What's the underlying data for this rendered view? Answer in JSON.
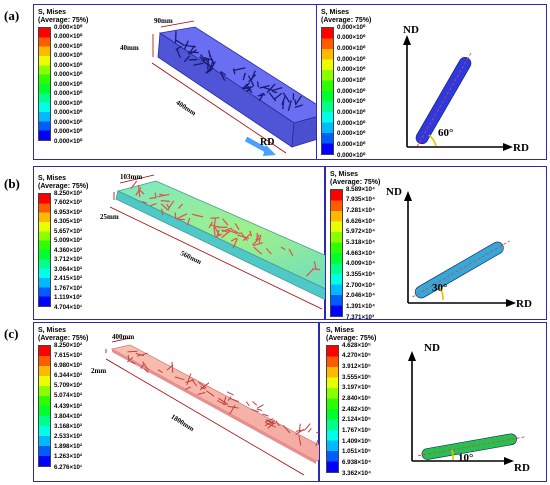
{
  "colors": {
    "frame": "#2b2bb0",
    "cells": [
      "#0000ff",
      "#005cff",
      "#00b9ff",
      "#00ffe8",
      "#00ff8b",
      "#00ff2e",
      "#2eff00",
      "#8bff00",
      "#e8ff00",
      "#ffb900",
      "#ff5c00",
      "#ff0000"
    ]
  },
  "rows": [
    {
      "label": "(a)",
      "left_legend": {
        "title1": "S, Mises",
        "title2": "(Average: 75%)",
        "values": [
          "0.000×10⁰",
          "0.000×10⁰",
          "0.000×10⁰",
          "0.000×10⁰",
          "0.000×10⁰",
          "0.000×10⁰",
          "0.000×10⁰",
          "0.000×10⁰",
          "0.000×10⁰",
          "0.000×10⁰",
          "0.000×10⁰",
          "0.000×10⁰",
          "0.000×10⁰"
        ]
      },
      "dims": [
        "90mm",
        "40mm",
        "400mm"
      ],
      "rd_arrow_label": "RD",
      "right_legend": {
        "title1": "S, Mises",
        "title2": "(Average: 75%)",
        "values": [
          "0.000×10⁰",
          "0.000×10⁰",
          "0.000×10⁰",
          "0.000×10⁰",
          "0.000×10⁰",
          "0.000×10⁰",
          "0.000×10⁰",
          "0.000×10⁰",
          "0.000×10⁰",
          "0.000×10⁰",
          "0.000×10⁰",
          "0.000×10⁰",
          "0.000×10⁰"
        ]
      },
      "axes": {
        "nd": "ND",
        "rd": "RD",
        "angle": "60°",
        "angle_deg": 60
      }
    },
    {
      "label": "(b)",
      "left_legend": {
        "title1": "S, Mises",
        "title2": "(Average: 75%)",
        "values": [
          "8.250×10²",
          "7.602×10²",
          "6.953×10²",
          "6.305×10²",
          "5.657×10²",
          "5.009×10²",
          "4.360×10²",
          "3.712×10²",
          "3.064×10²",
          "2.415×10²",
          "1.767×10²",
          "1.119×10²",
          "4.704×10¹"
        ]
      },
      "dims": [
        "103mm",
        "25mm",
        "560mm"
      ],
      "right_legend": {
        "title1": "S, Mises",
        "title2": "(Average: 75%)",
        "values": [
          "8.589×10⁴",
          "7.935×10⁴",
          "7.281×10⁴",
          "6.626×10⁴",
          "5.972×10⁴",
          "5.318×10⁴",
          "4.663×10⁴",
          "4.009×10⁴",
          "3.355×10⁴",
          "2.700×10⁴",
          "2.046×10⁴",
          "1.391×10⁴",
          "7.371×10³"
        ]
      },
      "axes": {
        "nd": "ND",
        "rd": "RD",
        "angle": "30°",
        "angle_deg": 30
      }
    },
    {
      "label": "(c)",
      "left_legend": {
        "title1": "S, Mises",
        "title2": "(Average: 75%)",
        "values": [
          "8.250×10²",
          "7.615×10²",
          "6.980×10²",
          "6.344×10²",
          "5.709×10²",
          "5.074×10²",
          "4.439×10²",
          "3.804×10²",
          "3.168×10²",
          "2.533×10²",
          "1.898×10²",
          "1.263×10²",
          "6.276×10¹"
        ]
      },
      "dims": [
        "400mm",
        "2mm",
        "1800mm"
      ],
      "right_legend": {
        "title1": "S, Mises",
        "title2": "(Average: 75%)",
        "values": [
          "4.628×10⁵",
          "4.270×10⁵",
          "3.912×10⁵",
          "3.555×10⁵",
          "3.197×10⁵",
          "2.840×10⁵",
          "2.482×10⁵",
          "2.124×10⁵",
          "1.767×10⁵",
          "1.409×10⁵",
          "1.051×10⁵",
          "6.938×10⁴",
          "3.362×10⁴"
        ]
      },
      "axes": {
        "nd": "ND",
        "rd": "RD",
        "angle": "10°",
        "angle_deg": 10
      }
    }
  ]
}
